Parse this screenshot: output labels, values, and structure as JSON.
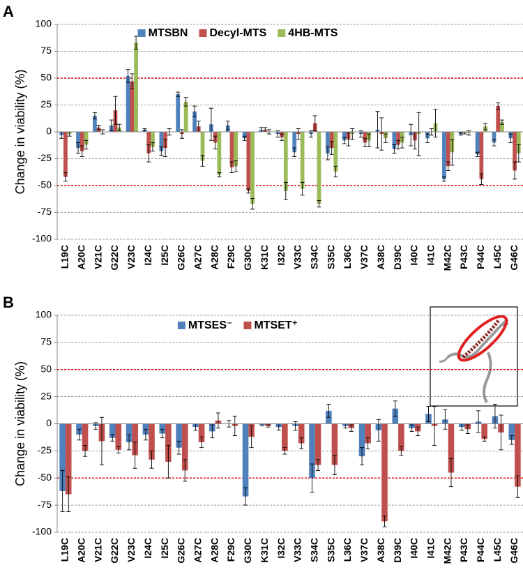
{
  "chart_data": [
    {
      "type": "bar",
      "label": "A",
      "y_label": "Change in viability (%)",
      "categories": [
        "L19C",
        "A20C",
        "V21C",
        "G22C",
        "V23C",
        "I24C",
        "I25C",
        "G26C",
        "A27C",
        "A28C",
        "F29C",
        "G30C",
        "K31C",
        "I32C",
        "V33C",
        "S34C",
        "S35C",
        "L36C",
        "V37C",
        "A38C",
        "D39C",
        "I40C",
        "I41C",
        "M42C",
        "P43C",
        "P44C",
        "L45C",
        "G46C"
      ],
      "series": [
        {
          "name": "MTSBN",
          "color": "#4f81bd",
          "values": [
            -3,
            -15,
            15,
            6,
            52,
            2,
            -18,
            35,
            19,
            7,
            6,
            -6,
            2,
            -2,
            -19,
            -2,
            -20,
            -8,
            -2,
            2,
            -16,
            -3,
            -6,
            -44,
            -2,
            -21,
            -10,
            -6
          ],
          "errors": [
            3,
            5,
            3,
            5,
            6,
            1,
            4,
            2,
            5,
            15,
            4,
            2,
            2,
            3,
            4,
            3,
            6,
            3,
            3,
            17,
            4,
            10,
            4,
            2,
            1,
            2,
            3,
            4
          ]
        },
        {
          "name": "Decyl-MTS",
          "color": "#c0504d",
          "values": [
            -42,
            -18,
            4,
            20,
            47,
            -20,
            -15,
            -2,
            5,
            -10,
            -33,
            -55,
            2,
            -5,
            -2,
            8,
            -15,
            -7,
            -10,
            -2,
            -12,
            -8,
            0,
            -32,
            -1,
            -44,
            24,
            -36
          ],
          "errors": [
            4,
            5,
            2,
            13,
            7,
            8,
            8,
            4,
            5,
            6,
            5,
            2,
            2,
            3,
            5,
            7,
            6,
            6,
            4,
            15,
            4,
            8,
            3,
            4,
            1,
            5,
            3,
            8
          ]
        },
        {
          "name": "4HB-MTS",
          "color": "#9bbb59",
          "values": [
            -2,
            -12,
            0,
            4,
            83,
            -14,
            0,
            28,
            -27,
            -40,
            -32,
            -67,
            0,
            -55,
            -53,
            -67,
            -37,
            -2,
            -8,
            -6,
            -10,
            -2,
            8,
            -19,
            -1,
            5,
            9,
            -20
          ],
          "errors": [
            2,
            4,
            2,
            3,
            6,
            4,
            3,
            4,
            5,
            2,
            5,
            5,
            2,
            8,
            6,
            3,
            5,
            5,
            6,
            4,
            5,
            20,
            13,
            12,
            2,
            3,
            2,
            8
          ]
        }
      ],
      "ylim": [
        -100,
        100
      ],
      "yticks": [
        -100,
        -75,
        -50,
        -25,
        0,
        25,
        50,
        75,
        100
      ],
      "grid": true,
      "reference_lines": [
        50,
        -50
      ],
      "legend": "top"
    },
    {
      "type": "bar",
      "label": "B",
      "y_label": "Change in viability (%)",
      "categories": [
        "L19C",
        "A20C",
        "V21C",
        "G22C",
        "V23C",
        "I24C",
        "I25C",
        "G26C",
        "A27C",
        "A28C",
        "F29C",
        "G30C",
        "K31C",
        "I32C",
        "V33C",
        "S34C",
        "S35C",
        "L36C",
        "V37C",
        "A38C",
        "D39C",
        "I40C",
        "I41C",
        "M42C",
        "P43C",
        "P44C",
        "L45C",
        "G46C"
      ],
      "series": [
        {
          "name": "MTSES⁻",
          "color": "#4f81bd",
          "values": [
            -62,
            -10,
            -2,
            -13,
            -17,
            -10,
            -9,
            -22,
            -3,
            -7,
            0,
            -67,
            -1,
            -3,
            -2,
            -50,
            12,
            -2,
            -30,
            -6,
            14,
            -4,
            9,
            4,
            -3,
            2,
            7,
            -15
          ],
          "errors": [
            19,
            5,
            3,
            3,
            7,
            5,
            4,
            6,
            3,
            6,
            3,
            8,
            1,
            3,
            4,
            13,
            6,
            2,
            8,
            10,
            7,
            3,
            7,
            9,
            3,
            10,
            11,
            4
          ]
        },
        {
          "name": "MTSET⁺",
          "color": "#c0504d",
          "values": [
            -65,
            -25,
            -16,
            -24,
            -29,
            -33,
            -35,
            -43,
            -17,
            3,
            -2,
            -12,
            -2,
            -25,
            -18,
            -38,
            -38,
            -4,
            -18,
            -90,
            -25,
            -7,
            -2,
            -45,
            -5,
            -14,
            -8,
            -58
          ],
          "errors": [
            16,
            5,
            22,
            3,
            12,
            8,
            15,
            10,
            5,
            7,
            9,
            10,
            1,
            3,
            5,
            5,
            9,
            3,
            5,
            5,
            4,
            4,
            18,
            13,
            4,
            2,
            16,
            10
          ]
        }
      ],
      "ylim": [
        -100,
        100
      ],
      "yticks": [
        -100,
        -75,
        -50,
        -25,
        0,
        25,
        50,
        75,
        100
      ],
      "grid": true,
      "reference_lines": [
        50,
        -50
      ],
      "legend": "top"
    }
  ]
}
